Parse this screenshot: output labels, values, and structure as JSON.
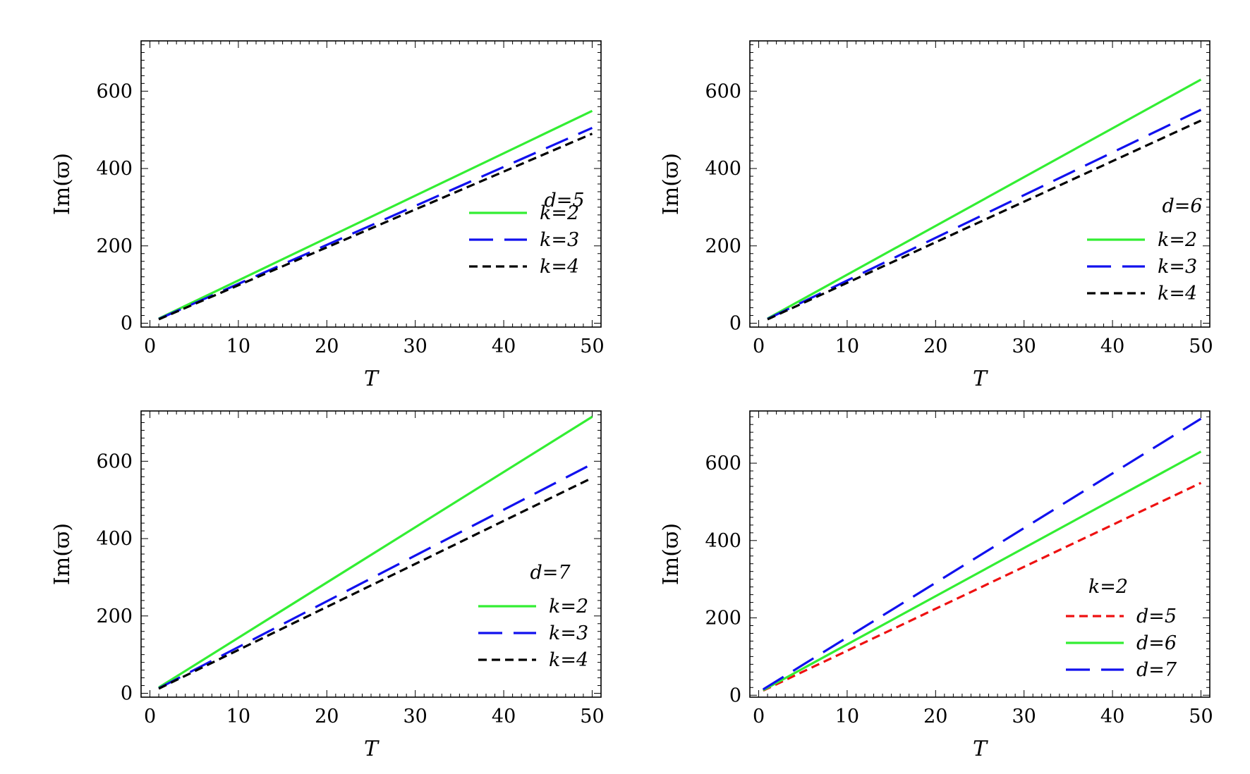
{
  "chart_data": [
    {
      "type": "line",
      "title": "",
      "xlabel": "T",
      "ylabel": "Im(ϖ)",
      "xlim": [
        -1,
        51
      ],
      "ylim": [
        -10,
        730
      ],
      "xticks": [
        0,
        10,
        20,
        30,
        40,
        50
      ],
      "yticks": [
        0,
        200,
        400,
        600
      ],
      "legend": {
        "title": "d=5",
        "position": "right"
      },
      "series": [
        {
          "name": "k=2",
          "color": "#33ee33",
          "dash": "solid",
          "x": [
            1,
            50
          ],
          "y": [
            12,
            549
          ]
        },
        {
          "name": "k=3",
          "color": "#1111ee",
          "dash": "long",
          "x": [
            1,
            50
          ],
          "y": [
            11,
            505
          ]
        },
        {
          "name": "k=4",
          "color": "#000000",
          "dash": "short",
          "x": [
            1,
            50
          ],
          "y": [
            10,
            490
          ]
        }
      ]
    },
    {
      "type": "line",
      "title": "",
      "xlabel": "T",
      "ylabel": "Im(ϖ)",
      "xlim": [
        -1,
        51
      ],
      "ylim": [
        -10,
        730
      ],
      "xticks": [
        0,
        10,
        20,
        30,
        40,
        50
      ],
      "yticks": [
        0,
        200,
        400,
        600
      ],
      "legend": {
        "title": "d=6",
        "position": "right"
      },
      "series": [
        {
          "name": "k=2",
          "color": "#33ee33",
          "dash": "solid",
          "x": [
            1,
            50
          ],
          "y": [
            12,
            630
          ]
        },
        {
          "name": "k=3",
          "color": "#1111ee",
          "dash": "long",
          "x": [
            1,
            50
          ],
          "y": [
            11,
            552
          ]
        },
        {
          "name": "k=4",
          "color": "#000000",
          "dash": "short",
          "x": [
            1,
            50
          ],
          "y": [
            10,
            524
          ]
        }
      ]
    },
    {
      "type": "line",
      "title": "",
      "xlabel": "T",
      "ylabel": "Im(ϖ)",
      "xlim": [
        -1,
        51
      ],
      "ylim": [
        -10,
        730
      ],
      "xticks": [
        0,
        10,
        20,
        30,
        40,
        50
      ],
      "yticks": [
        0,
        200,
        400,
        600
      ],
      "legend": {
        "title": "d=7",
        "position": "right"
      },
      "series": [
        {
          "name": "k=2",
          "color": "#33ee33",
          "dash": "solid",
          "x": [
            1,
            50
          ],
          "y": [
            15,
            715
          ]
        },
        {
          "name": "k=3",
          "color": "#1111ee",
          "dash": "long",
          "x": [
            1,
            50
          ],
          "y": [
            13,
            593
          ]
        },
        {
          "name": "k=4",
          "color": "#000000",
          "dash": "short",
          "x": [
            1,
            50
          ],
          "y": [
            12,
            557
          ]
        }
      ]
    },
    {
      "type": "line",
      "title": "",
      "xlabel": "T",
      "ylabel": "Im(ϖ)",
      "xlim": [
        -1,
        51
      ],
      "ylim": [
        -5,
        735
      ],
      "xticks": [
        0,
        10,
        20,
        30,
        40,
        50
      ],
      "yticks": [
        0,
        200,
        400,
        600
      ],
      "legend": {
        "title": "k=2",
        "position": "bottom-right"
      },
      "series": [
        {
          "name": "d=5",
          "color": "#ee1111",
          "dash": "short",
          "x": [
            0.5,
            50
          ],
          "y": [
            12,
            549
          ]
        },
        {
          "name": "d=6",
          "color": "#33ee33",
          "dash": "solid",
          "x": [
            0.5,
            50
          ],
          "y": [
            13,
            630
          ]
        },
        {
          "name": "d=7",
          "color": "#1111ee",
          "dash": "long",
          "x": [
            0.5,
            50
          ],
          "y": [
            15,
            715
          ]
        }
      ]
    }
  ]
}
